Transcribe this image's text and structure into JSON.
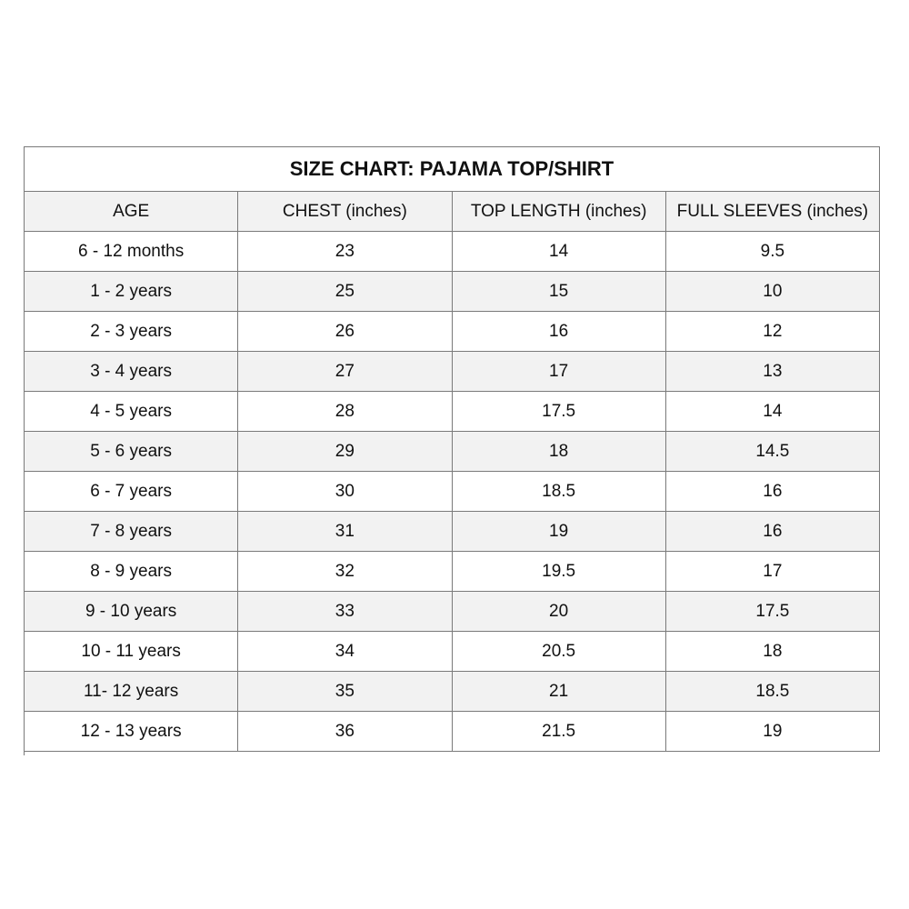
{
  "title": "SIZE CHART: PAJAMA TOP/SHIRT",
  "columns": [
    "AGE",
    "CHEST  (inches)",
    "TOP LENGTH (inches)",
    "FULL SLEEVES (inches)"
  ],
  "rows": [
    [
      "6 - 12 months",
      "23",
      "14",
      "9.5"
    ],
    [
      "1 - 2 years",
      "25",
      "15",
      "10"
    ],
    [
      "2 - 3 years",
      "26",
      "16",
      "12"
    ],
    [
      "3 - 4 years",
      "27",
      "17",
      "13"
    ],
    [
      "4 - 5 years",
      "28",
      "17.5",
      "14"
    ],
    [
      "5 - 6 years",
      "29",
      "18",
      "14.5"
    ],
    [
      "6 - 7 years",
      "30",
      "18.5",
      "16"
    ],
    [
      "7 - 8 years",
      "31",
      "19",
      "16"
    ],
    [
      "8 - 9 years",
      "32",
      "19.5",
      "17"
    ],
    [
      "9 - 10 years",
      "33",
      "20",
      "17.5"
    ],
    [
      "10 - 11 years",
      "34",
      "20.5",
      "18"
    ],
    [
      "11- 12 years",
      "35",
      "21",
      "18.5"
    ],
    [
      "12 - 13 years",
      "36",
      "21.5",
      "19"
    ]
  ],
  "colors": {
    "border": "#7a7a7a",
    "alt_row": "#f2f2f2"
  }
}
